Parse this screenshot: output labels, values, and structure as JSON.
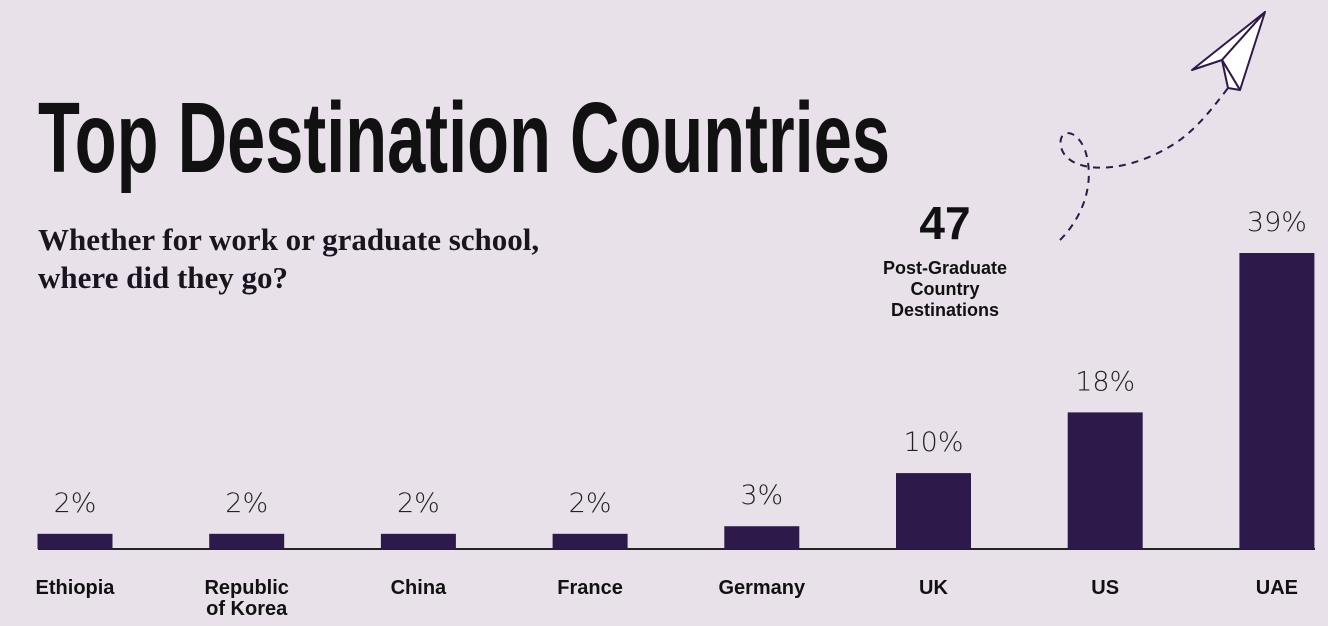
{
  "chart_data": {
    "type": "bar",
    "title": "Top Destination Countries",
    "subtitle": [
      "Whether for work or graduate school,",
      "where did they go?"
    ],
    "annotation": {
      "value": "47",
      "text": "Post-Graduate Country Destinations"
    },
    "categories": [
      "Ethiopia",
      "Republic of Korea",
      "China",
      "France",
      "Germany",
      "UK",
      "US",
      "UAE"
    ],
    "values": [
      2,
      2,
      2,
      2,
      3,
      10,
      18,
      39
    ],
    "value_labels": [
      "2%",
      "2%",
      "2%",
      "2%",
      "3%",
      "10%",
      "18%",
      "39%"
    ],
    "color": "#2e1a4a"
  }
}
